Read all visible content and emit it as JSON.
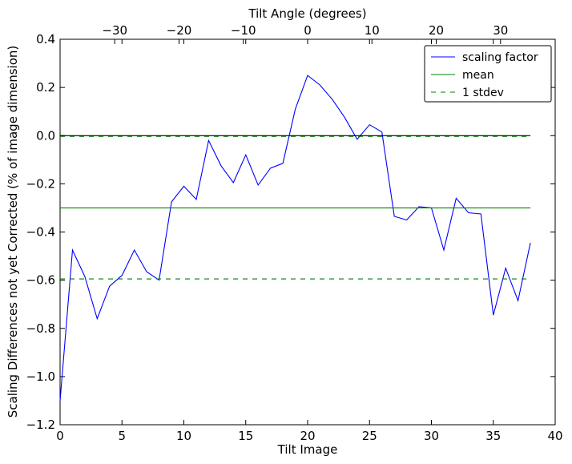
{
  "chart_data": {
    "type": "line",
    "xlabel": "Tilt Image",
    "ylabel": "Scaling Differences not yet Corrected (% of image dimension)",
    "top_xlabel": "Tilt Angle (degrees)",
    "xlim": [
      0,
      40
    ],
    "ylim": [
      -1.2,
      0.4
    ],
    "top_xlim": [
      -38.5,
      38.5
    ],
    "x_ticks": [
      0,
      5,
      10,
      15,
      20,
      25,
      30,
      35,
      40
    ],
    "x_tick_labels": [
      "0",
      "5",
      "10",
      "15",
      "20",
      "25",
      "30",
      "35",
      "40"
    ],
    "y_ticks": [
      -1.2,
      -1.0,
      -0.8,
      -0.6,
      -0.4,
      -0.2,
      0.0,
      0.2,
      0.4
    ],
    "y_tick_labels": [
      "−1.2",
      "−1.0",
      "−0.8",
      "−0.6",
      "−0.4",
      "−0.2",
      "0.0",
      "0.2",
      "0.4"
    ],
    "top_ticks": [
      -30,
      -20,
      -10,
      0,
      10,
      20,
      30
    ],
    "top_tick_labels": [
      "−30",
      "−20",
      "−10",
      "0",
      "10",
      "20",
      "30"
    ],
    "grid": false,
    "legend_position": "top-right",
    "series": [
      {
        "name": "scaling factor",
        "color": "#0000ff",
        "style": "solid",
        "x": [
          0,
          1,
          2,
          3,
          4,
          5,
          6,
          7,
          8,
          9,
          10,
          11,
          12,
          13,
          14,
          15,
          16,
          17,
          18,
          19,
          20,
          21,
          22,
          23,
          24,
          25,
          26,
          27,
          28,
          29,
          30,
          31,
          32,
          33,
          34,
          35,
          36,
          37,
          38
        ],
        "y": [
          -1.1,
          -0.475,
          -0.585,
          -0.76,
          -0.625,
          -0.58,
          -0.475,
          -0.565,
          -0.6,
          -0.275,
          -0.21,
          -0.265,
          -0.02,
          -0.125,
          -0.195,
          -0.08,
          -0.205,
          -0.135,
          -0.115,
          0.11,
          0.25,
          0.21,
          0.15,
          0.075,
          -0.015,
          0.045,
          0.015,
          -0.335,
          -0.35,
          -0.295,
          -0.3,
          -0.475,
          -0.26,
          -0.32,
          -0.325,
          -0.745,
          -0.55,
          -0.685,
          -0.445
        ]
      },
      {
        "name": "mean",
        "color": "#008000",
        "style": "solid",
        "x": [
          0,
          38
        ],
        "y": [
          -0.3,
          -0.3
        ]
      },
      {
        "name": "1 stdev",
        "color": "#008000",
        "style": "dashed",
        "x": [
          0,
          38
        ],
        "y": [
          -0.595,
          -0.595
        ]
      },
      {
        "color": "#008000",
        "style": "dashed",
        "x": [
          0,
          38
        ],
        "y": [
          -0.003,
          -0.003
        ]
      },
      {
        "color": "#000000",
        "style": "solid",
        "x": [
          0,
          38
        ],
        "y": [
          0.0,
          0.0
        ]
      }
    ]
  }
}
